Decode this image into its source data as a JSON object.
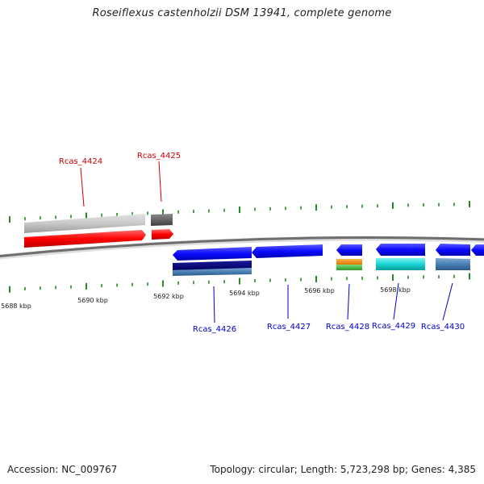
{
  "title": "Roseiflexus castenholzii DSM 13941, complete genome",
  "footer": {
    "accession": "Accession: NC_009767",
    "genome_info": "Topology: circular; Length: 5,723,298 bp; Genes: 4,385"
  },
  "colors": {
    "backbone": "#777777",
    "tick": "#228b22",
    "forward_label": "#cc0000",
    "reverse_label": "#0000cc"
  },
  "axis": {
    "unit": "kbp",
    "tick_labels": [
      "5688 kbp",
      "5690 kbp",
      "5692 kbp",
      "5694 kbp",
      "5696 kbp",
      "5698 kbp"
    ]
  },
  "genes": [
    {
      "name": "Rcas_4424",
      "strand": "forward",
      "color": "red"
    },
    {
      "name": "Rcas_4425",
      "strand": "forward",
      "color": "red"
    },
    {
      "name": "Rcas_4426",
      "strand": "reverse",
      "color": "blue"
    },
    {
      "name": "Rcas_4427",
      "strand": "reverse",
      "color": "blue"
    },
    {
      "name": "Rcas_4428",
      "strand": "reverse",
      "color": "blue"
    },
    {
      "name": "Rcas_4429",
      "strand": "reverse",
      "color": "blue"
    },
    {
      "name": "Rcas_4430",
      "strand": "reverse",
      "color": "blue"
    }
  ]
}
